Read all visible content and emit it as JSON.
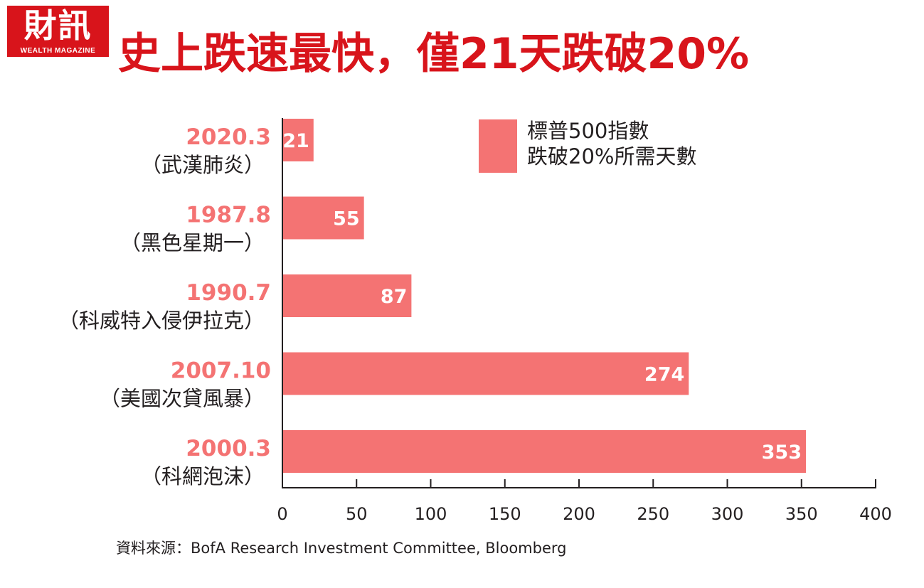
{
  "logo": {
    "text": "財訊",
    "subtitle": "WEALTH MAGAZINE"
  },
  "colors": {
    "title": "#d8141b",
    "bar": "#f47373",
    "category_label": "#f47373",
    "axis": "#231f20"
  },
  "chart_data": {
    "type": "bar",
    "orientation": "horizontal",
    "title": "史上跌速最快，僅21天跌破20%",
    "categories": [
      {
        "date": "2020.3",
        "event": "（武漢肺炎）"
      },
      {
        "date": "1987.8",
        "event": "（黑色星期一）"
      },
      {
        "date": "1990.7",
        "event": "（科威特入侵伊拉克）"
      },
      {
        "date": "2007.10",
        "event": "（美國次貸風暴）"
      },
      {
        "date": "2000.3",
        "event": "（科網泡沫）"
      }
    ],
    "series": [
      {
        "name": "標普500指數跌破20%所需天數",
        "values": [
          21,
          55,
          87,
          274,
          353
        ]
      }
    ],
    "legend_lines": [
      "標普500指數",
      "跌破20%所需天數"
    ],
    "legend_position": "top-right",
    "xlim": [
      0,
      400
    ],
    "xticks": [
      0,
      50,
      100,
      150,
      200,
      250,
      300,
      350,
      400
    ],
    "grid": false,
    "data_labels": true
  },
  "source": "資料來源：BofA Research Investment Committee, Bloomberg"
}
